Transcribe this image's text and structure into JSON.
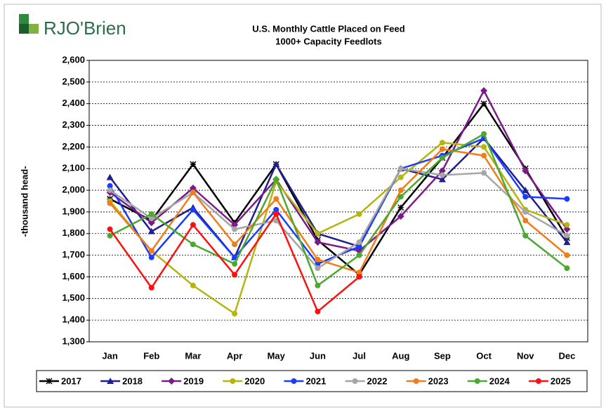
{
  "brand": "RJO'Brien",
  "chart_data": {
    "type": "line",
    "title": "U.S. Monthly Cattle Placed on Feed",
    "subtitle": "1000+ Capacity Feedlots",
    "y_label": "-thousand head-",
    "categories": [
      "Jan",
      "Feb",
      "Mar",
      "Apr",
      "May",
      "Jun",
      "Jul",
      "Aug",
      "Sep",
      "Oct",
      "Nov",
      "Dec"
    ],
    "ylim": [
      1300,
      2600
    ],
    "yticks": [
      {
        "value": 1300,
        "label": "1,300"
      },
      {
        "value": 1400,
        "label": "1,400"
      },
      {
        "value": 1500,
        "label": "1,500"
      },
      {
        "value": 1600,
        "label": "1,600"
      },
      {
        "value": 1700,
        "label": "1,700"
      },
      {
        "value": 1800,
        "label": "1,800"
      },
      {
        "value": 1900,
        "label": "1,900"
      },
      {
        "value": 2000,
        "label": "2,000"
      },
      {
        "value": 2100,
        "label": "2,100"
      },
      {
        "value": 2200,
        "label": "2,200"
      },
      {
        "value": 2300,
        "label": "2,300"
      },
      {
        "value": 2400,
        "label": "2,400"
      },
      {
        "value": 2500,
        "label": "2,500"
      },
      {
        "value": 2600,
        "label": "2,600"
      }
    ],
    "grid": true,
    "legend": "bottom",
    "series": [
      {
        "name": "2017",
        "color": "#000000",
        "marker": "star",
        "values": [
          1960,
          1860,
          2120,
          1850,
          2120,
          1770,
          1610,
          1920,
          2150,
          2400,
          2100,
          1780
        ]
      },
      {
        "name": "2018",
        "color": "#1f1f8f",
        "marker": "triangle",
        "values": [
          2060,
          1810,
          1920,
          1690,
          2120,
          1800,
          1740,
          2100,
          2050,
          2240,
          2000,
          1760
        ]
      },
      {
        "name": "2019",
        "color": "#7b1a8a",
        "marker": "diamond",
        "values": [
          1990,
          1850,
          2010,
          1840,
          2050,
          1760,
          1720,
          1880,
          2090,
          2460,
          2090,
          1820
        ]
      },
      {
        "name": "2020",
        "color": "#b5b511",
        "marker": "circle",
        "values": [
          1950,
          1720,
          1560,
          1430,
          2040,
          1800,
          1890,
          2060,
          2220,
          2200,
          1910,
          1840
        ]
      },
      {
        "name": "2021",
        "color": "#1a3cff",
        "marker": "circle",
        "values": [
          2020,
          1690,
          1910,
          1690,
          1910,
          1660,
          1740,
          2100,
          2160,
          2240,
          1970,
          1960
        ]
      },
      {
        "name": "2022",
        "color": "#a6a6a6",
        "marker": "circle",
        "values": [
          2000,
          1870,
          1990,
          1820,
          1860,
          1640,
          1760,
          2100,
          2070,
          2080,
          1900,
          1790
        ]
      },
      {
        "name": "2023",
        "color": "#f07d1a",
        "marker": "circle",
        "values": [
          1940,
          1720,
          1990,
          1750,
          1960,
          1680,
          1620,
          2000,
          2190,
          2160,
          1860,
          1700
        ]
      },
      {
        "name": "2024",
        "color": "#4ca82e",
        "marker": "circle",
        "values": [
          1790,
          1890,
          1750,
          1660,
          2050,
          1560,
          1700,
          1970,
          2150,
          2260,
          1790,
          1640
        ]
      },
      {
        "name": "2025",
        "color": "#ff1010",
        "marker": "circle",
        "values": [
          1820,
          1550,
          1840,
          1610,
          1890,
          1440,
          1600,
          null,
          null,
          null,
          null,
          null
        ]
      }
    ]
  }
}
